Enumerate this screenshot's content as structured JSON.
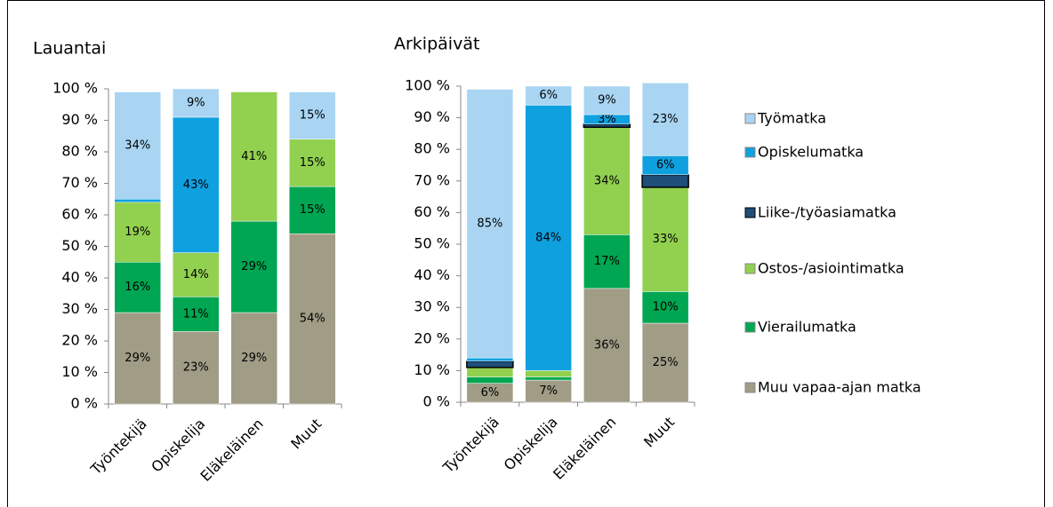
{
  "chart_data": [
    {
      "type": "stacked-bar",
      "title": "Lauantai",
      "categories": [
        "Työntekijä",
        "Opiskelija",
        "Eläkeläinen",
        "Muut"
      ],
      "ylim": [
        0,
        100
      ],
      "yticks": [
        {
          "value": 0,
          "label": "0 %"
        },
        {
          "value": 10,
          "label": "10 %"
        },
        {
          "value": 20,
          "label": "20 %"
        },
        {
          "value": 30,
          "label": "30 %"
        },
        {
          "value": 40,
          "label": "40 %"
        },
        {
          "value": 50,
          "label": "50 %"
        },
        {
          "value": 60,
          "label": "60 %"
        },
        {
          "value": 70,
          "label": "70 %"
        },
        {
          "value": 80,
          "label": "80 %"
        },
        {
          "value": 90,
          "label": "90 %"
        },
        {
          "value": 100,
          "label": "100 %"
        }
      ],
      "series": [
        {
          "values": [
            29,
            23,
            29,
            54
          ],
          "value_labels": [
            "29%",
            "23%",
            "29%",
            "54%"
          ]
        },
        {
          "values": [
            16,
            11,
            29,
            15
          ],
          "value_labels": [
            "16%",
            "11%",
            "29%",
            "15%"
          ]
        },
        {
          "values": [
            19,
            14,
            41,
            15
          ],
          "value_labels": [
            "19%",
            "14%",
            "41%",
            "15%"
          ]
        },
        {
          "values": [
            0,
            0,
            0,
            0
          ],
          "value_labels": [
            null,
            null,
            null,
            null
          ]
        },
        {
          "values": [
            1,
            43,
            0,
            0
          ],
          "value_labels": [
            null,
            "43%",
            null,
            null
          ]
        },
        {
          "values": [
            34,
            9,
            0,
            15
          ],
          "value_labels": [
            "34%",
            "9%",
            null,
            "15%"
          ]
        }
      ]
    },
    {
      "type": "stacked-bar",
      "title": "Arkipäivät",
      "categories": [
        "Työntekijä",
        "Opiskelija",
        "Eläkeläinen",
        "Muut"
      ],
      "ylim": [
        0,
        100
      ],
      "yticks": [
        {
          "value": 0,
          "label": "0 %"
        },
        {
          "value": 10,
          "label": "10 %"
        },
        {
          "value": 20,
          "label": "20 %"
        },
        {
          "value": 30,
          "label": "30 %"
        },
        {
          "value": 40,
          "label": "40 %"
        },
        {
          "value": 50,
          "label": "50 %"
        },
        {
          "value": 60,
          "label": "60 %"
        },
        {
          "value": 70,
          "label": "70 %"
        },
        {
          "value": 80,
          "label": "80 %"
        },
        {
          "value": 90,
          "label": "90 %"
        },
        {
          "value": 100,
          "label": "100 %"
        }
      ],
      "legend": "right",
      "series": [
        {
          "name": "Muu vapaa-ajan matka",
          "color": "#a09c86",
          "values": [
            6,
            7,
            36,
            25
          ],
          "value_labels": [
            "6%",
            "7%",
            "36%",
            "25%"
          ]
        },
        {
          "name": "Vierailumatka",
          "color": "#00a651",
          "values": [
            2,
            1,
            17,
            10
          ],
          "value_labels": [
            null,
            null,
            "17%",
            "10%"
          ]
        },
        {
          "name": "Ostos-/asiointimatka",
          "color": "#92d050",
          "values": [
            3,
            2,
            34,
            33
          ],
          "value_labels": [
            null,
            null,
            "34%",
            "33%"
          ]
        },
        {
          "name": "Liike-/työasiamatka",
          "color": "#1f4e79",
          "edgecolor": "#000000",
          "values": [
            2,
            0,
            1,
            4
          ],
          "value_labels": [
            null,
            null,
            null,
            null
          ]
        },
        {
          "name": "Opiskelumatka",
          "color": "#0fa0e0",
          "values": [
            1,
            84,
            3,
            6
          ],
          "value_labels": [
            null,
            "84%",
            "3%",
            "6%"
          ]
        },
        {
          "name": "Työmatka",
          "color": "#a9d5f3",
          "values": [
            85,
            6,
            9,
            23
          ],
          "value_labels": [
            "85%",
            "6%",
            "9%",
            "23%"
          ]
        }
      ]
    }
  ]
}
